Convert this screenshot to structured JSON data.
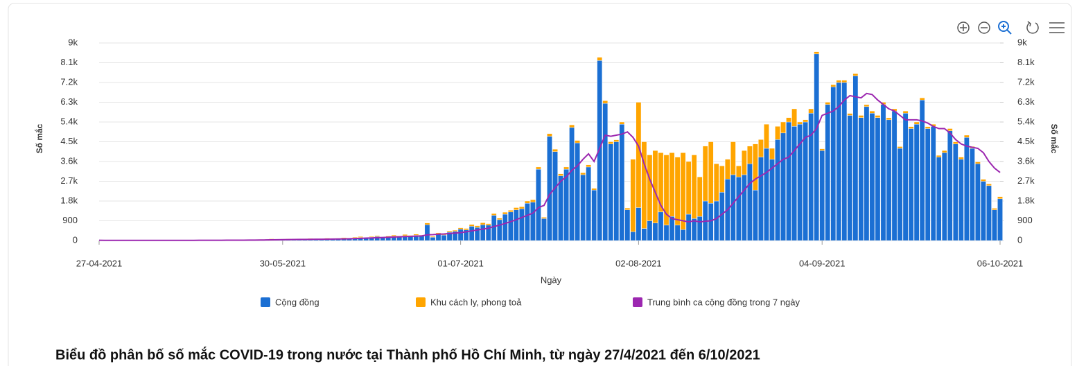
{
  "chart_data": {
    "type": "bar",
    "stacked": true,
    "title": "Biểu đồ phân bố số mắc COVID-19 trong nước tại Thành phố Hồ Chí Minh, từ ngày 27/4/2021 đến 6/10/2021",
    "x_label": "Ngày",
    "y_label": "Số mắc",
    "y2_label": "Số mắc",
    "x": [
      "27-04-2021",
      "28-04-2021",
      "29-04-2021",
      "30-04-2021",
      "01-05-2021",
      "02-05-2021",
      "03-05-2021",
      "04-05-2021",
      "05-05-2021",
      "06-05-2021",
      "07-05-2021",
      "08-05-2021",
      "09-05-2021",
      "10-05-2021",
      "11-05-2021",
      "12-05-2021",
      "13-05-2021",
      "14-05-2021",
      "15-05-2021",
      "16-05-2021",
      "17-05-2021",
      "18-05-2021",
      "19-05-2021",
      "20-05-2021",
      "21-05-2021",
      "22-05-2021",
      "23-05-2021",
      "24-05-2021",
      "25-05-2021",
      "26-05-2021",
      "27-05-2021",
      "28-05-2021",
      "29-05-2021",
      "30-05-2021",
      "31-05-2021",
      "01-06-2021",
      "02-06-2021",
      "03-06-2021",
      "04-06-2021",
      "05-06-2021",
      "06-06-2021",
      "07-06-2021",
      "08-06-2021",
      "09-06-2021",
      "10-06-2021",
      "11-06-2021",
      "12-06-2021",
      "13-06-2021",
      "14-06-2021",
      "15-06-2021",
      "16-06-2021",
      "17-06-2021",
      "18-06-2021",
      "19-06-2021",
      "20-06-2021",
      "21-06-2021",
      "22-06-2021",
      "23-06-2021",
      "24-06-2021",
      "25-06-2021",
      "26-06-2021",
      "27-06-2021",
      "28-06-2021",
      "29-06-2021",
      "30-06-2021",
      "01-07-2021",
      "02-07-2021",
      "03-07-2021",
      "04-07-2021",
      "05-07-2021",
      "06-07-2021",
      "07-07-2021",
      "08-07-2021",
      "09-07-2021",
      "10-07-2021",
      "11-07-2021",
      "12-07-2021",
      "13-07-2021",
      "14-07-2021",
      "15-07-2021",
      "16-07-2021",
      "17-07-2021",
      "18-07-2021",
      "19-07-2021",
      "20-07-2021",
      "21-07-2021",
      "22-07-2021",
      "23-07-2021",
      "24-07-2021",
      "25-07-2021",
      "26-07-2021",
      "27-07-2021",
      "28-07-2021",
      "29-07-2021",
      "30-07-2021",
      "31-07-2021",
      "01-08-2021",
      "02-08-2021",
      "03-08-2021",
      "04-08-2021",
      "05-08-2021",
      "06-08-2021",
      "07-08-2021",
      "08-08-2021",
      "09-08-2021",
      "10-08-2021",
      "11-08-2021",
      "12-08-2021",
      "13-08-2021",
      "14-08-2021",
      "15-08-2021",
      "16-08-2021",
      "17-08-2021",
      "18-08-2021",
      "19-08-2021",
      "20-08-2021",
      "21-08-2021",
      "22-08-2021",
      "23-08-2021",
      "24-08-2021",
      "25-08-2021",
      "26-08-2021",
      "27-08-2021",
      "28-08-2021",
      "29-08-2021",
      "30-08-2021",
      "31-08-2021",
      "01-09-2021",
      "02-09-2021",
      "03-09-2021",
      "04-09-2021",
      "05-09-2021",
      "06-09-2021",
      "07-09-2021",
      "08-09-2021",
      "09-09-2021",
      "10-09-2021",
      "11-09-2021",
      "12-09-2021",
      "13-09-2021",
      "14-09-2021",
      "15-09-2021",
      "16-09-2021",
      "17-09-2021",
      "18-09-2021",
      "19-09-2021",
      "20-09-2021",
      "21-09-2021",
      "22-09-2021",
      "23-09-2021",
      "24-09-2021",
      "25-09-2021",
      "26-09-2021",
      "27-09-2021",
      "28-09-2021",
      "29-09-2021",
      "30-09-2021",
      "01-10-2021",
      "02-10-2021",
      "03-10-2021",
      "04-10-2021",
      "05-10-2021",
      "06-10-2021"
    ],
    "xticks": [
      "27-04-2021",
      "30-05-2021",
      "01-07-2021",
      "02-08-2021",
      "04-09-2021",
      "06-10-2021"
    ],
    "ylim": [
      0,
      9000
    ],
    "yticks": [
      0,
      900,
      {
        "value": 1800,
        "label": "1.8k"
      },
      {
        "value": 2700,
        "label": "2.7k"
      },
      {
        "value": 3600,
        "label": "3.6k"
      },
      {
        "value": 4500,
        "label": "4.5k"
      },
      {
        "value": 5400,
        "label": "5.4k"
      },
      {
        "value": 6300,
        "label": "6.3k"
      },
      {
        "value": 7200,
        "label": "7.2k"
      },
      {
        "value": 8100,
        "label": "8.1k"
      },
      {
        "value": 9000,
        "label": "9k"
      }
    ],
    "y2lim": [
      0,
      9000
    ],
    "y2ticks": [
      0,
      900,
      {
        "value": 1800,
        "label": "1.8k"
      },
      {
        "value": 2700,
        "label": "2.7k"
      },
      {
        "value": 3600,
        "label": "3.6k"
      },
      {
        "value": 4500,
        "label": "4.5k"
      },
      {
        "value": 5400,
        "label": "5.4k"
      },
      {
        "value": 6300,
        "label": "6.3k"
      },
      {
        "value": 7200,
        "label": "7.2k"
      },
      {
        "value": 8100,
        "label": "8.1k"
      },
      {
        "value": 9000,
        "label": "9k"
      }
    ],
    "grid": true,
    "series": [
      {
        "name": "Cộng đồng",
        "color": "#1b6fd3",
        "type": "bar",
        "values": [
          10,
          5,
          8,
          0,
          12,
          5,
          3,
          6,
          10,
          4,
          0,
          7,
          5,
          15,
          8,
          10,
          6,
          12,
          9,
          20,
          14,
          10,
          18,
          25,
          12,
          20,
          15,
          22,
          30,
          40,
          35,
          60,
          50,
          45,
          70,
          55,
          40,
          65,
          80,
          60,
          75,
          90,
          70,
          85,
          100,
          95,
          120,
          140,
          110,
          150,
          180,
          130,
          160,
          200,
          170,
          220,
          190,
          240,
          210,
          720,
          150,
          300,
          250,
          380,
          420,
          520,
          480,
          650,
          600,
          720,
          700,
          1150,
          950,
          1200,
          1300,
          1400,
          1450,
          1700,
          1750,
          3250,
          1000,
          4750,
          4050,
          2950,
          3250,
          5150,
          4450,
          3000,
          3350,
          2300,
          8200,
          6250,
          4400,
          4500,
          5300,
          1400,
          400,
          1500,
          550,
          900,
          800,
          1300,
          700,
          1100,
          700,
          500,
          1200,
          1000,
          1100,
          1800,
          1700,
          1800,
          2200,
          2800,
          3000,
          2900,
          3000,
          3500,
          2300,
          3800,
          4200,
          3700,
          4600,
          4900,
          5400,
          5200,
          5300,
          5400,
          5800,
          8500,
          4100,
          6200,
          7000,
          7200,
          7200,
          5700,
          7500,
          5600,
          6100,
          5800,
          5600,
          6200,
          5500,
          5900,
          4200,
          5800,
          5100,
          5300,
          6400,
          5100,
          5200,
          3800,
          4000,
          5000,
          4400,
          3700,
          4700,
          4200,
          3500,
          2700,
          2500,
          1400,
          1900
        ]
      },
      {
        "name": "Khu cách ly, phong toả",
        "color": "#ffa500",
        "type": "bar",
        "values": [
          0,
          0,
          0,
          0,
          0,
          0,
          0,
          0,
          0,
          0,
          0,
          0,
          0,
          0,
          0,
          0,
          0,
          0,
          0,
          0,
          5,
          0,
          0,
          5,
          0,
          0,
          5,
          0,
          5,
          10,
          15,
          20,
          10,
          25,
          15,
          10,
          20,
          15,
          20,
          25,
          15,
          20,
          25,
          20,
          30,
          25,
          30,
          40,
          25,
          35,
          40,
          30,
          45,
          50,
          40,
          55,
          45,
          50,
          40,
          80,
          40,
          50,
          60,
          55,
          50,
          60,
          70,
          80,
          75,
          90,
          70,
          80,
          70,
          90,
          80,
          100,
          90,
          100,
          110,
          100,
          60,
          120,
          110,
          90,
          100,
          120,
          110,
          90,
          100,
          80,
          150,
          120,
          100,
          90,
          100,
          80,
          3300,
          4800,
          3950,
          3000,
          3300,
          2700,
          3200,
          2900,
          3100,
          3500,
          2400,
          2900,
          1800,
          2500,
          2800,
          1700,
          1200,
          900,
          1500,
          500,
          1100,
          800,
          2100,
          800,
          1100,
          500,
          600,
          500,
          200,
          800,
          100,
          100,
          200,
          100,
          80,
          100,
          100,
          100,
          100,
          90,
          100,
          100,
          90,
          100,
          100,
          100,
          90,
          100,
          80,
          100,
          90,
          100,
          100,
          90,
          100,
          80,
          100,
          100,
          90,
          100,
          100,
          90,
          80,
          90,
          80,
          70,
          100
        ]
      },
      {
        "name": "Trung bình ca cộng đồng trong 7 ngày",
        "color": "#9c27b0",
        "type": "line",
        "values": [
          10,
          9,
          8,
          8,
          8,
          7,
          7,
          6,
          7,
          7,
          6,
          6,
          6,
          7,
          7,
          8,
          8,
          9,
          10,
          11,
          12,
          12,
          13,
          14,
          15,
          16,
          17,
          18,
          19,
          22,
          26,
          30,
          35,
          40,
          45,
          48,
          50,
          52,
          55,
          58,
          60,
          62,
          66,
          70,
          75,
          80,
          90,
          100,
          110,
          120,
          130,
          140,
          150,
          160,
          170,
          180,
          190,
          200,
          210,
          260,
          270,
          290,
          300,
          320,
          340,
          360,
          400,
          440,
          480,
          520,
          560,
          640,
          700,
          780,
          860,
          950,
          1050,
          1150,
          1250,
          1500,
          1600,
          2100,
          2400,
          2700,
          2900,
          3200,
          3400,
          3700,
          3950,
          3600,
          4200,
          4800,
          4750,
          4800,
          4850,
          4950,
          4700,
          4300,
          3500,
          2800,
          2200,
          1600,
          1200,
          1000,
          950,
          900,
          850,
          900,
          850,
          880,
          900,
          1000,
          1200,
          1400,
          1700,
          2000,
          2300,
          2600,
          2800,
          2950,
          3100,
          3300,
          3500,
          3700,
          3800,
          4100,
          4400,
          4700,
          4800,
          5100,
          5700,
          5800,
          5900,
          6100,
          6400,
          6600,
          6550,
          6500,
          6700,
          6650,
          6400,
          6200,
          6000,
          5900,
          5700,
          5500,
          5500,
          5500,
          5450,
          5350,
          5200,
          5100,
          5100,
          4900,
          4600,
          4400,
          4300,
          4250,
          4200,
          4000,
          3600,
          3300,
          3100
        ]
      }
    ]
  }
}
